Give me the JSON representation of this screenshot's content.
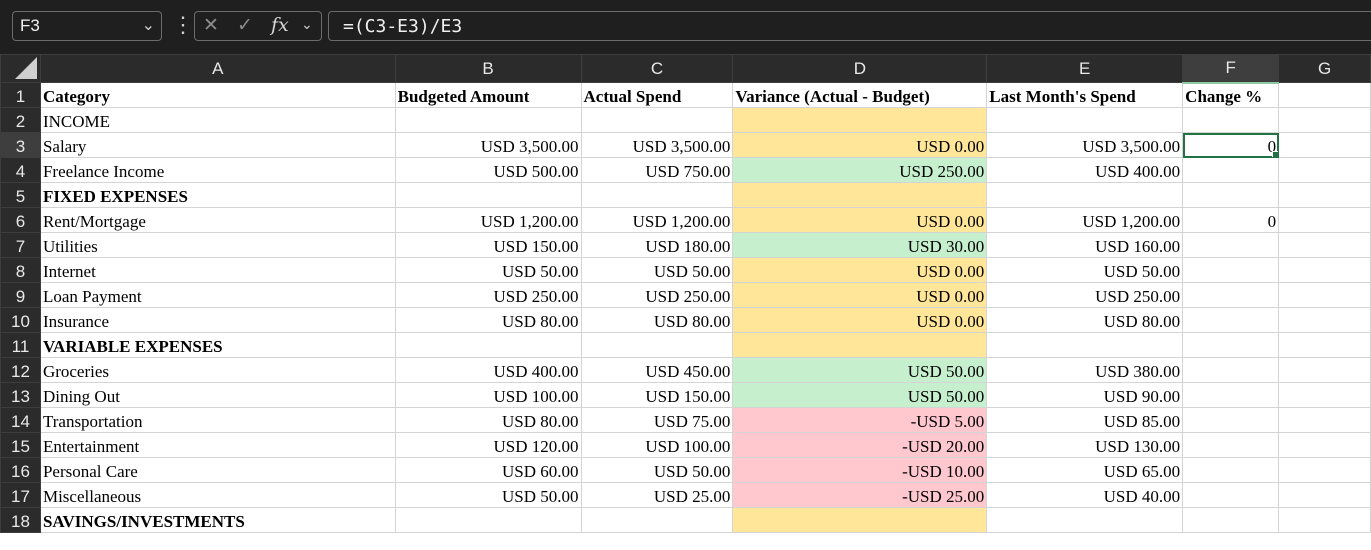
{
  "formula_bar": {
    "name_box": "F3",
    "formula": "=(C3-E3)/E3",
    "fx_label": "fx"
  },
  "columns": [
    "A",
    "B",
    "C",
    "D",
    "E",
    "F",
    "G"
  ],
  "rows": [
    {
      "n": "1",
      "a": "Category",
      "b": "Budgeted Amount",
      "c": "Actual Spend",
      "d": "Variance (Actual - Budget)",
      "e": "Last Month's Spend",
      "f": "Change %",
      "g": ""
    },
    {
      "n": "2",
      "a": "INCOME",
      "b": "",
      "c": "",
      "d": "",
      "e": "",
      "f": "",
      "g": ""
    },
    {
      "n": "3",
      "a": "Salary",
      "b": "USD 3,500.00",
      "c": "USD 3,500.00",
      "d": "USD 0.00",
      "e": "USD 3,500.00",
      "f": "0",
      "g": ""
    },
    {
      "n": "4",
      "a": "Freelance Income",
      "b": "USD 500.00",
      "c": "USD 750.00",
      "d": "USD 250.00",
      "e": "USD 400.00",
      "f": "",
      "g": ""
    },
    {
      "n": "5",
      "a": "FIXED EXPENSES",
      "b": "",
      "c": "",
      "d": "",
      "e": "",
      "f": "",
      "g": ""
    },
    {
      "n": "6",
      "a": "Rent/Mortgage",
      "b": "USD 1,200.00",
      "c": "USD 1,200.00",
      "d": "USD 0.00",
      "e": "USD 1,200.00",
      "f": "0",
      "g": ""
    },
    {
      "n": "7",
      "a": "Utilities",
      "b": "USD 150.00",
      "c": "USD 180.00",
      "d": "USD 30.00",
      "e": "USD 160.00",
      "f": "",
      "g": ""
    },
    {
      "n": "8",
      "a": "Internet",
      "b": "USD 50.00",
      "c": "USD 50.00",
      "d": "USD 0.00",
      "e": "USD 50.00",
      "f": "",
      "g": ""
    },
    {
      "n": "9",
      "a": "Loan Payment",
      "b": "USD 250.00",
      "c": "USD 250.00",
      "d": "USD 0.00",
      "e": "USD 250.00",
      "f": "",
      "g": ""
    },
    {
      "n": "10",
      "a": "Insurance",
      "b": "USD 80.00",
      "c": "USD 80.00",
      "d": "USD 0.00",
      "e": "USD 80.00",
      "f": "",
      "g": ""
    },
    {
      "n": "11",
      "a": "VARIABLE EXPENSES",
      "b": "",
      "c": "",
      "d": "",
      "e": "",
      "f": "",
      "g": ""
    },
    {
      "n": "12",
      "a": "Groceries",
      "b": "USD 400.00",
      "c": "USD 450.00",
      "d": "USD 50.00",
      "e": "USD 380.00",
      "f": "",
      "g": ""
    },
    {
      "n": "13",
      "a": "Dining Out",
      "b": "USD 100.00",
      "c": "USD 150.00",
      "d": "USD 50.00",
      "e": "USD 90.00",
      "f": "",
      "g": ""
    },
    {
      "n": "14",
      "a": "Transportation",
      "b": "USD 80.00",
      "c": "USD 75.00",
      "d": "-USD 5.00",
      "e": "USD 85.00",
      "f": "",
      "g": ""
    },
    {
      "n": "15",
      "a": "Entertainment",
      "b": "USD 120.00",
      "c": "USD 100.00",
      "d": "-USD 20.00",
      "e": "USD 130.00",
      "f": "",
      "g": ""
    },
    {
      "n": "16",
      "a": "Personal Care",
      "b": "USD 60.00",
      "c": "USD 50.00",
      "d": "-USD 10.00",
      "e": "USD 65.00",
      "f": "",
      "g": ""
    },
    {
      "n": "17",
      "a": "Miscellaneous",
      "b": "USD 50.00",
      "c": "USD 25.00",
      "d": "-USD 25.00",
      "e": "USD 40.00",
      "f": "",
      "g": ""
    },
    {
      "n": "18",
      "a": "SAVINGS/INVESTMENTS",
      "b": "",
      "c": "",
      "d": "",
      "e": "",
      "f": "",
      "g": ""
    }
  ],
  "colors": {
    "neutral_fill": "#ffe699",
    "positive_fill": "#c6efce",
    "negative_fill": "#ffc7ce",
    "selection": "#217346"
  }
}
